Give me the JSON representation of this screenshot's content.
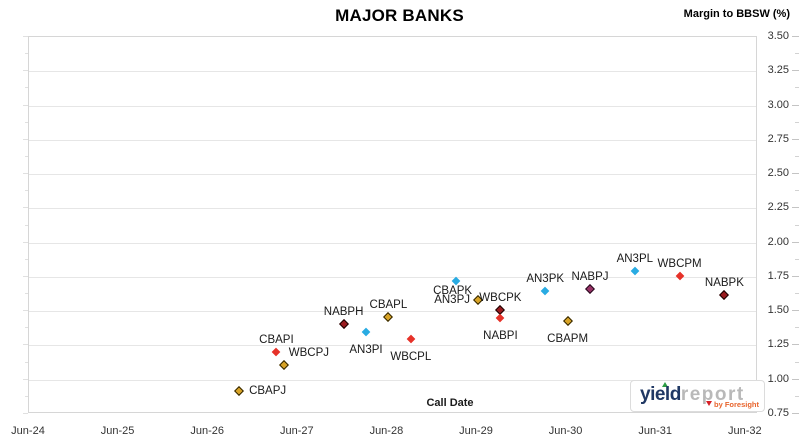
{
  "header": {
    "title": "MAJOR BANKS",
    "axis_title_right": "Margin to BBSW (%)"
  },
  "x_axis": {
    "label": "Call Date",
    "ticks": [
      "Jun-24",
      "Jun-25",
      "Jun-26",
      "Jun-27",
      "Jun-28",
      "Jun-29",
      "Jun-30",
      "Jun-31",
      "Jun-32"
    ]
  },
  "y_axis": {
    "tick_labels": [
      "3.50",
      "3.25",
      "3.00",
      "2.75",
      "2.50",
      "2.25",
      "2.00",
      "1.75",
      "1.50",
      "1.25",
      "1.00",
      "0.75"
    ],
    "min": 0.75,
    "max": 3.5,
    "step": 0.25
  },
  "logo": {
    "word1": "yield",
    "word2": "report",
    "byline": "by Foresight",
    "word1_color": "#203864",
    "word2_color": "#b9b9b9",
    "byline_color": "#e8642c",
    "up_triangle_color": "#2e9e46",
    "down_triangle_color": "#d61f26"
  },
  "colors": {
    "grid": "#e6e6e6",
    "plot_border": "#d6d6d6",
    "tick": "#c4c4c4",
    "text": "#333333"
  },
  "chart_data": {
    "type": "scatter",
    "title": "MAJOR BANKS",
    "xlabel": "Call Date",
    "ylabel": "Margin to BBSW (%)",
    "x_ticks": [
      "Jun-24",
      "Jun-25",
      "Jun-26",
      "Jun-27",
      "Jun-28",
      "Jun-29",
      "Jun-30",
      "Jun-31",
      "Jun-32"
    ],
    "ylim": [
      0.75,
      3.5
    ],
    "y_tick_step": 0.25,
    "grid": "horizontal",
    "legend": "none",
    "marker_shape": "diamond",
    "marker_colors": {
      "gold": {
        "fill": "#d9a426",
        "border": "#2e2300",
        "size": 7
      },
      "cyan": {
        "fill": "#29abe2",
        "border": "#29abe2",
        "size": 6
      },
      "red": {
        "fill": "#e63229",
        "border": "#e63229",
        "size": 6
      },
      "darkred": {
        "fill": "#9b1b1f",
        "border": "#140000",
        "size": 7
      },
      "purple": {
        "fill": "#993366",
        "border": "#20071a",
        "size": 7
      }
    },
    "points": [
      {
        "label": "CBAPJ",
        "call_date": "Oct-26",
        "margin_pct": 0.92,
        "color": "gold",
        "label_pos": "right"
      },
      {
        "label": "CBAPI",
        "call_date": "Mar-27",
        "margin_pct": 1.2,
        "color": "red",
        "label_pos": "above"
      },
      {
        "label": "WBCPJ",
        "call_date": "Apr-27",
        "margin_pct": 1.11,
        "color": "gold",
        "label_pos": "above-right"
      },
      {
        "label": "NABPH",
        "call_date": "Dec-27",
        "margin_pct": 1.41,
        "color": "darkred",
        "label_pos": "above"
      },
      {
        "label": "AN3PI",
        "call_date": "Mar-28",
        "margin_pct": 1.35,
        "color": "cyan",
        "label_pos": "below"
      },
      {
        "label": "CBAPL",
        "call_date": "Jun-28",
        "margin_pct": 1.46,
        "color": "gold",
        "label_pos": "above"
      },
      {
        "label": "WBCPL",
        "call_date": "Sep-28",
        "margin_pct": 1.3,
        "color": "red",
        "label_pos": "below"
      },
      {
        "label": "CBAPK",
        "call_date": "Mar-29",
        "margin_pct": 1.72,
        "color": "cyan",
        "label_pos": "below-left"
      },
      {
        "label": "AN3PJ",
        "call_date": "Jun-29",
        "margin_pct": 1.58,
        "color": "gold",
        "label_pos": "left"
      },
      {
        "label": "WBCPK",
        "call_date": "Sep-29",
        "margin_pct": 1.51,
        "color": "darkred",
        "label_pos": "above"
      },
      {
        "label": "NABPI",
        "call_date": "Sep-29",
        "margin_pct": 1.45,
        "color": "red",
        "label_pos": "below"
      },
      {
        "label": "AN3PK",
        "call_date": "Mar-30",
        "margin_pct": 1.65,
        "color": "cyan",
        "label_pos": "above"
      },
      {
        "label": "CBAPM",
        "call_date": "Jun-30",
        "margin_pct": 1.43,
        "color": "gold",
        "label_pos": "below"
      },
      {
        "label": "NABPJ",
        "call_date": "Sep-30",
        "margin_pct": 1.66,
        "color": "purple",
        "label_pos": "above"
      },
      {
        "label": "AN3PL",
        "call_date": "Mar-31",
        "margin_pct": 1.79,
        "color": "cyan",
        "label_pos": "above"
      },
      {
        "label": "WBCPM",
        "call_date": "Sep-31",
        "margin_pct": 1.76,
        "color": "red",
        "label_pos": "above"
      },
      {
        "label": "NABPK",
        "call_date": "Mar-32",
        "margin_pct": 1.62,
        "color": "darkred",
        "label_pos": "above"
      }
    ]
  }
}
